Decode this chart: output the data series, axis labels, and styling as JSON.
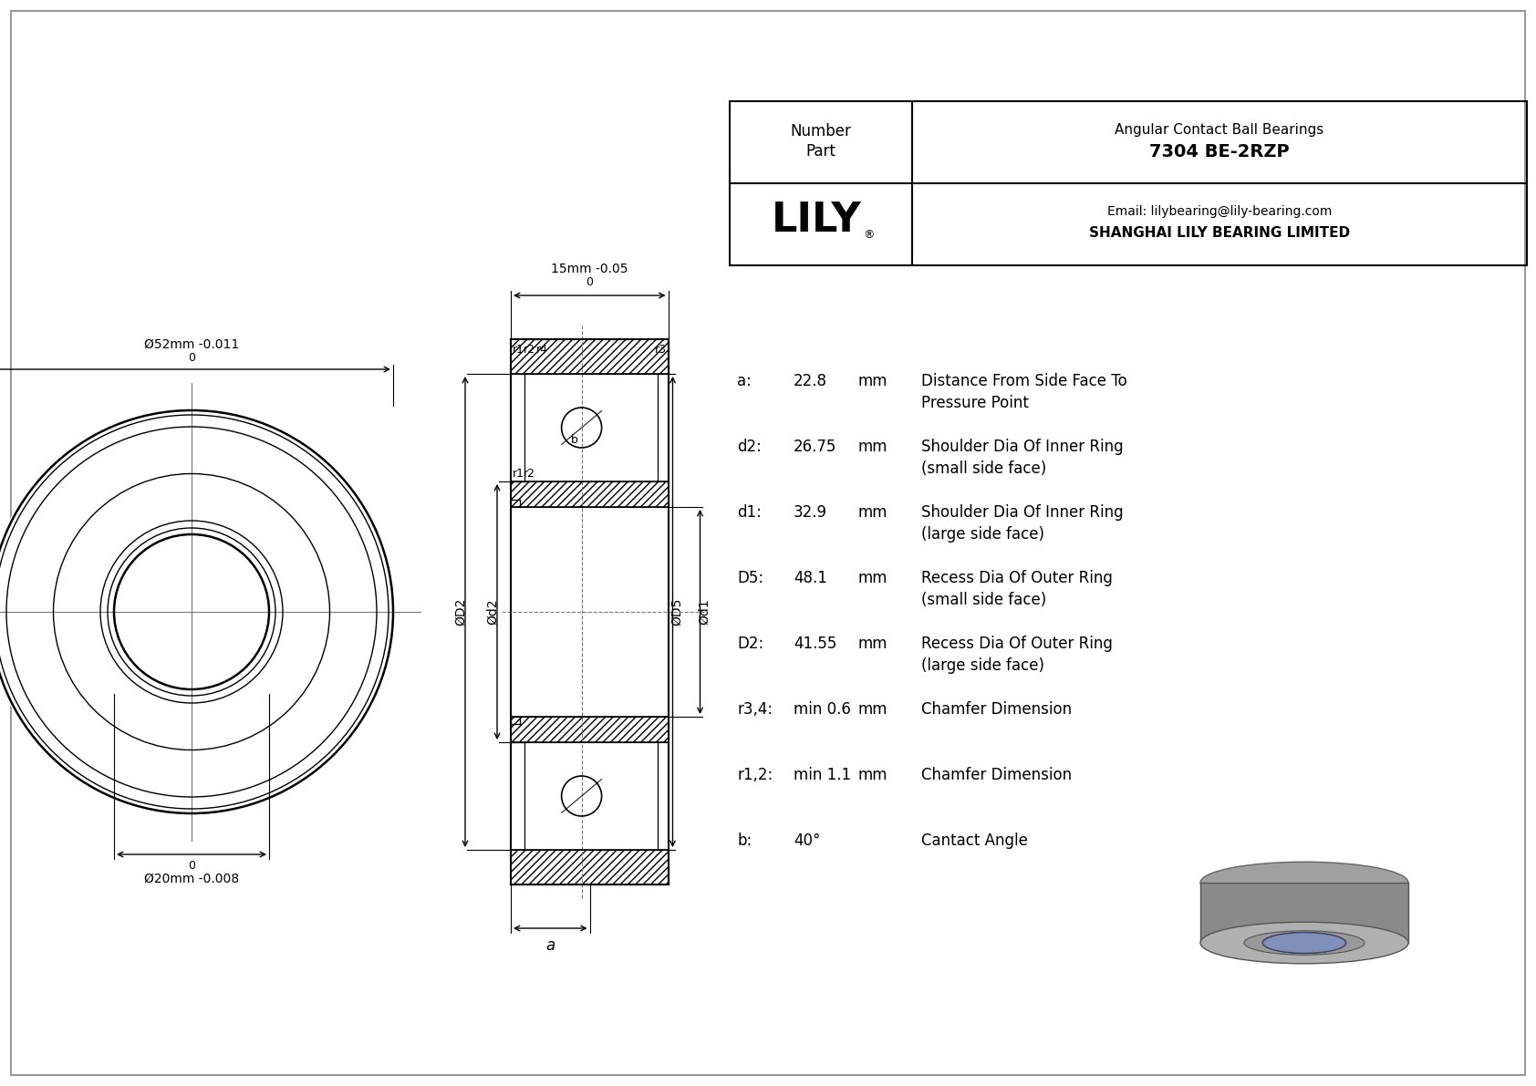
{
  "bg_color": "#ffffff",
  "line_color": "#000000",
  "border_color": "#aaaaaa",
  "specs": [
    {
      "label": "b:",
      "value": "40°",
      "unit": "",
      "desc": "Cantact Angle"
    },
    {
      "label": "r1,2:",
      "value": "min 1.1",
      "unit": "mm",
      "desc": "Chamfer Dimension"
    },
    {
      "label": "r3,4:",
      "value": "min 0.6",
      "unit": "mm",
      "desc": "Chamfer Dimension"
    },
    {
      "label": "D2:",
      "value": "41.55",
      "unit": "mm",
      "desc": "Recess Dia Of Outer Ring\n(large side face)"
    },
    {
      "label": "D5:",
      "value": "48.1",
      "unit": "mm",
      "desc": "Recess Dia Of Outer Ring\n(small side face)"
    },
    {
      "label": "d1:",
      "value": "32.9",
      "unit": "mm",
      "desc": "Shoulder Dia Of Inner Ring\n(large side face)"
    },
    {
      "label": "d2:",
      "value": "26.75",
      "unit": "mm",
      "desc": "Shoulder Dia Of Inner Ring\n(small side face)"
    },
    {
      "label": "a:",
      "value": "22.8",
      "unit": "mm",
      "desc": "Distance From Side Face To\nPressure Point"
    }
  ],
  "OD_label": "Ø52mm",
  "OD_tol_upper": "0",
  "OD_tol_lower": "-0.011",
  "ID_label": "Ø20mm",
  "ID_tol_upper": "0",
  "ID_tol_lower": "-0.008",
  "W_label": "15mm",
  "W_tol_upper": "0",
  "W_tol_lower": "-0.05",
  "company": "SHANGHAI LILY BEARING LIMITED",
  "email": "Email: lilybearing@lily-bearing.com",
  "logo": "LILY",
  "part_number": "7304 BE-2RZP",
  "part_type": "Angular Contact Ball Bearings"
}
